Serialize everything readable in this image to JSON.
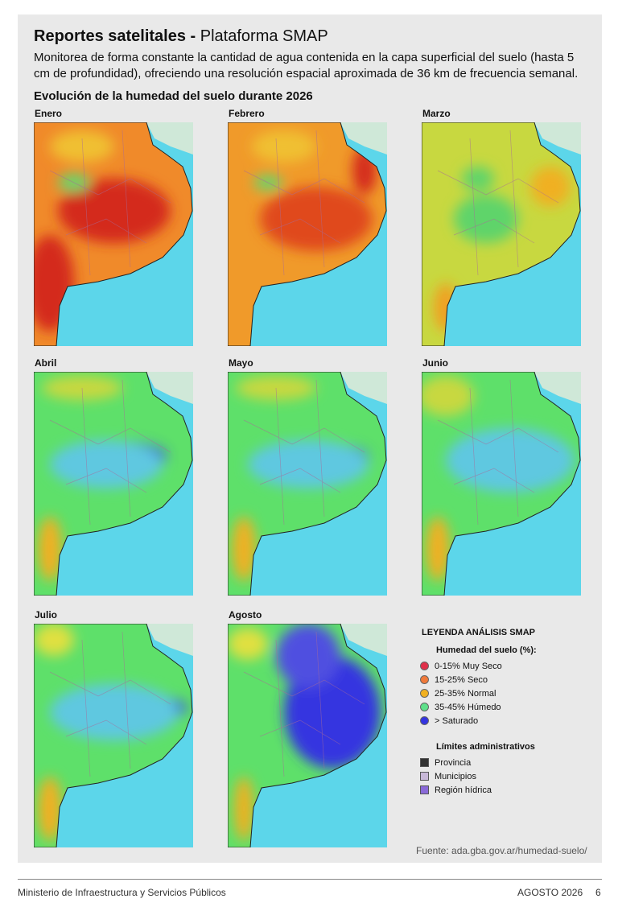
{
  "header": {
    "title": "Reportes satelitales -",
    "subtitle": "Plataforma SMAP",
    "description": "Monitorea de forma constante la cantidad de agua contenida en la capa superficial del suelo (hasta 5 cm de profundidad), ofreciendo una resolución espacial aproximada de 36 km de frecuencia semanal."
  },
  "section": {
    "title": "Evolución de la humedad del suelo durante 2026"
  },
  "maps": [
    {
      "label": "Enero"
    },
    {
      "label": "Febrero"
    },
    {
      "label": "Marzo"
    },
    {
      "label": "Abril"
    },
    {
      "label": "Mayo"
    },
    {
      "label": "Junio"
    },
    {
      "label": "Julio"
    },
    {
      "label": "Agosto"
    }
  ],
  "legend": {
    "title": "LEYENDA ANÁLISIS SMAP",
    "humidity_title": "Humedad del suelo (%):",
    "humidity_items": [
      {
        "label": "0-15% Muy Seco",
        "color": "#e0304a"
      },
      {
        "label": "15-25% Seco",
        "color": "#f07a3a"
      },
      {
        "label": "25-35% Normal",
        "color": "#f0b020"
      },
      {
        "label": "35-45% Húmedo",
        "color": "#5ee08a"
      },
      {
        "label": "> Saturado",
        "color": "#3434e0"
      }
    ],
    "limits_title": "Límites administrativos",
    "limits_items": [
      {
        "label": "Provincia",
        "color": "#333333"
      },
      {
        "label": "Municipios",
        "color": "#c8b8d8"
      },
      {
        "label": "Región hídrica",
        "color": "#8a6ad8"
      }
    ]
  },
  "source": "Fuente: ada.gba.gov.ar/humedad-suelo/",
  "footer": {
    "left": "Ministerio de Infraestructura y Servicios Públicos",
    "date": "AGOSTO 2026",
    "page": "6"
  }
}
